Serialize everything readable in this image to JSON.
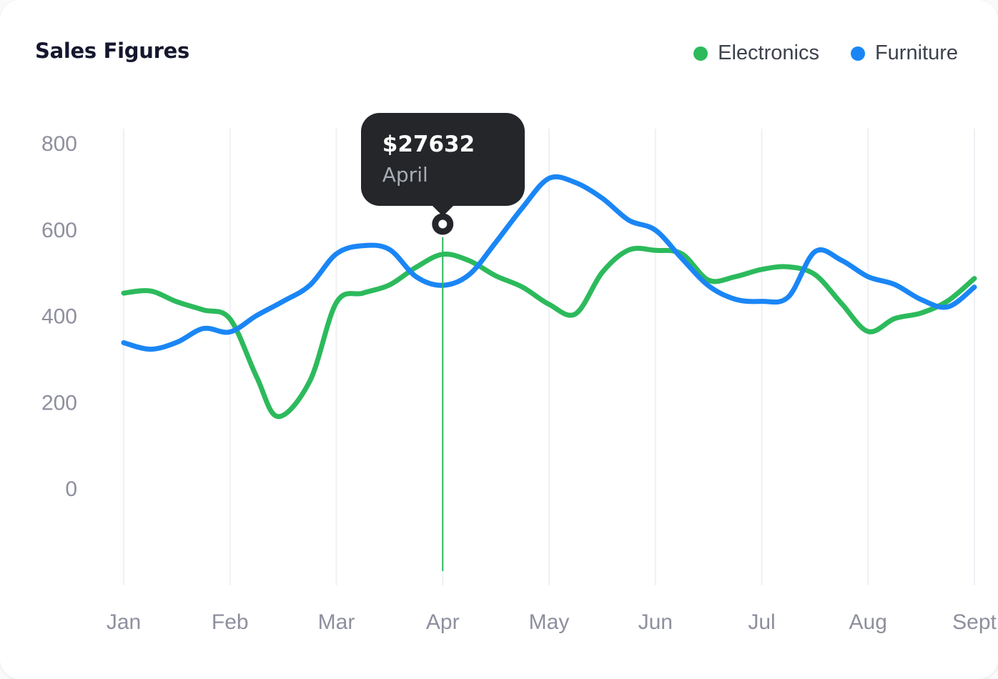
{
  "title": "Sales Figures",
  "legend": [
    {
      "label": "Electronics",
      "color": "#2cba5c"
    },
    {
      "label": "Furniture",
      "color": "#1a86f5"
    }
  ],
  "tooltip": {
    "value": "$27632",
    "label": "April",
    "point": {
      "month": "Apr",
      "month_index": 3,
      "axis_value": 612
    }
  },
  "colors": {
    "tooltip_bg": "#24262a",
    "gridline": "#eef0f4",
    "axis_text": "#8e8f9e",
    "title_text": "#15172e",
    "marker_inner": "#ffffff"
  },
  "chart_data": {
    "type": "line",
    "title": "Sales Figures",
    "categories": [
      "Jan",
      "Feb",
      "Mar",
      "Apr",
      "May",
      "Jun",
      "Jul",
      "Aug",
      "Sept"
    ],
    "y_ticks": [
      0,
      200,
      400,
      600,
      800
    ],
    "ylim": [
      0,
      830
    ],
    "grid": "vertical-only",
    "legend_position": "top-right",
    "x_unit": "month_fraction (Jan=0 ... Sept=8)",
    "series": [
      {
        "name": "Electronics",
        "color": "#2cba5c",
        "points": [
          [
            0,
            452
          ],
          [
            0.25,
            457
          ],
          [
            0.5,
            432
          ],
          [
            0.75,
            413
          ],
          [
            1,
            392
          ],
          [
            1.25,
            258
          ],
          [
            1.45,
            166
          ],
          [
            1.75,
            248
          ],
          [
            2,
            430
          ],
          [
            2.25,
            452
          ],
          [
            2.5,
            471
          ],
          [
            2.75,
            512
          ],
          [
            3,
            542
          ],
          [
            3.25,
            527
          ],
          [
            3.5,
            492
          ],
          [
            3.75,
            466
          ],
          [
            4,
            426
          ],
          [
            4.25,
            404
          ],
          [
            4.5,
            500
          ],
          [
            4.75,
            552
          ],
          [
            5,
            551
          ],
          [
            5.25,
            543
          ],
          [
            5.5,
            482
          ],
          [
            5.75,
            490
          ],
          [
            6,
            507
          ],
          [
            6.25,
            513
          ],
          [
            6.5,
            495
          ],
          [
            6.75,
            428
          ],
          [
            7,
            363
          ],
          [
            7.25,
            393
          ],
          [
            7.5,
            406
          ],
          [
            7.75,
            434
          ],
          [
            8,
            486
          ]
        ]
      },
      {
        "name": "Furniture",
        "color": "#1a86f5",
        "points": [
          [
            0,
            337
          ],
          [
            0.25,
            322
          ],
          [
            0.5,
            338
          ],
          [
            0.75,
            370
          ],
          [
            1,
            362
          ],
          [
            1.25,
            400
          ],
          [
            1.5,
            433
          ],
          [
            1.75,
            470
          ],
          [
            2,
            543
          ],
          [
            2.25,
            562
          ],
          [
            2.5,
            553
          ],
          [
            2.75,
            490
          ],
          [
            3,
            470
          ],
          [
            3.25,
            495
          ],
          [
            3.5,
            570
          ],
          [
            3.75,
            650
          ],
          [
            4,
            718
          ],
          [
            4.25,
            708
          ],
          [
            4.5,
            672
          ],
          [
            4.75,
            621
          ],
          [
            5,
            598
          ],
          [
            5.25,
            532
          ],
          [
            5.5,
            469
          ],
          [
            5.75,
            438
          ],
          [
            6,
            433
          ],
          [
            6.25,
            443
          ],
          [
            6.5,
            548
          ],
          [
            6.75,
            528
          ],
          [
            7,
            490
          ],
          [
            7.25,
            472
          ],
          [
            7.5,
            437
          ],
          [
            7.75,
            420
          ],
          [
            8,
            466
          ]
        ]
      }
    ]
  }
}
